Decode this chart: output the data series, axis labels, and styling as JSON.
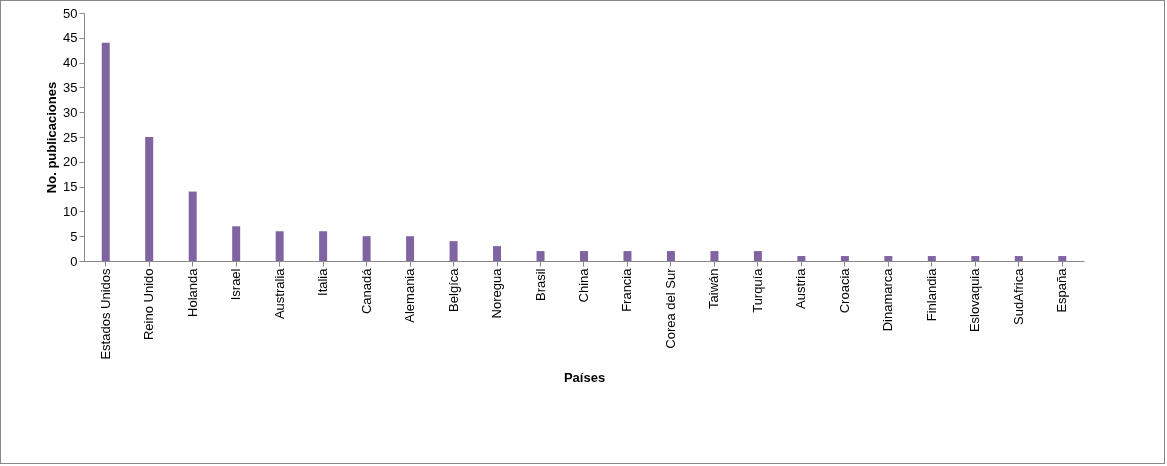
{
  "chart_data": {
    "type": "bar",
    "xlabel": "Países",
    "ylabel": "No. publicaciones",
    "categories": [
      "Estados Unidos",
      "Reino Unido",
      "Holanda",
      "Israel",
      "Australia",
      "Italia",
      "Canadá",
      "Alemania",
      "Belgíca",
      "Noregua",
      "Brasil",
      "China",
      "Francia",
      "Corea del Sur",
      "Taiwán",
      "Turquía",
      "Austria",
      "Croacia",
      "Dinamarca",
      "Finlandia",
      "Eslovaquia",
      "SudAfrica",
      "España"
    ],
    "values": [
      44,
      25,
      14,
      7,
      6,
      6,
      5,
      5,
      4,
      3,
      2,
      2,
      2,
      2,
      2,
      2,
      1,
      1,
      1,
      1,
      1,
      1,
      1
    ],
    "color": "#8064a2",
    "ylim": [
      0,
      50
    ],
    "yticks": [
      0,
      5,
      10,
      15,
      20,
      25,
      30,
      35,
      40,
      45,
      50
    ],
    "grid": false
  }
}
